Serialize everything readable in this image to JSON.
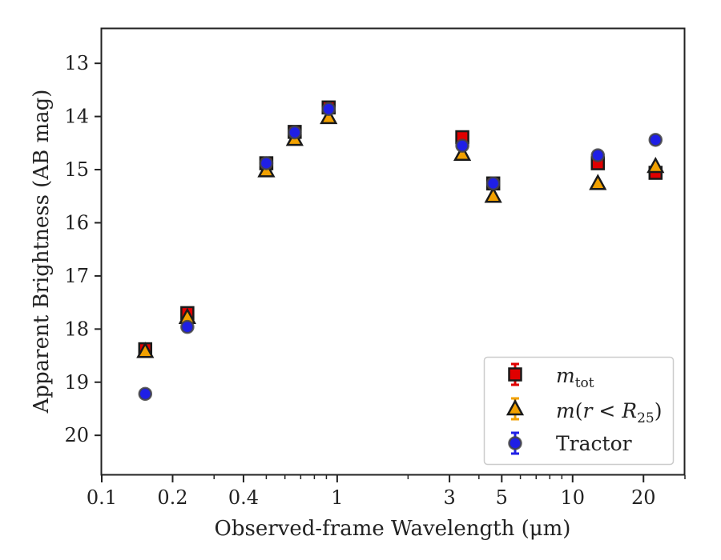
{
  "chart_data": {
    "type": "scatter",
    "xlabel": "Observed-frame Wavelength (μm)",
    "ylabel": "Apparent Brightness (AB mag)",
    "xscale": "log",
    "xlim": [
      0.1,
      30
    ],
    "ylim": [
      20.75,
      12.35
    ],
    "y_inverted": true,
    "x_ticks": [
      0.1,
      0.2,
      0.4,
      1,
      3,
      5,
      10,
      20
    ],
    "x_tick_labels": [
      "0.1",
      "0.2",
      "0.4",
      "1",
      "3",
      "5",
      "10",
      "20"
    ],
    "y_ticks": [
      13,
      14,
      15,
      16,
      17,
      18,
      19,
      20
    ],
    "y_tick_labels": [
      "13",
      "14",
      "15",
      "16",
      "17",
      "18",
      "19",
      "20"
    ],
    "grid": false,
    "legend_position": "lower-right",
    "series": [
      {
        "name": "m_tot",
        "marker": "square",
        "color": "#e00000",
        "points": [
          {
            "x": 0.153,
            "y": 18.38
          },
          {
            "x": 0.231,
            "y": 17.7
          },
          {
            "x": 0.5,
            "y": 14.88
          },
          {
            "x": 0.66,
            "y": 14.29
          },
          {
            "x": 0.92,
            "y": 13.83
          },
          {
            "x": 3.4,
            "y": 14.39
          },
          {
            "x": 4.6,
            "y": 15.26
          },
          {
            "x": 12.8,
            "y": 14.88
          },
          {
            "x": 22.5,
            "y": 15.06
          }
        ]
      },
      {
        "name": "m(r<R25)",
        "marker": "triangle",
        "color": "#f2a100",
        "points": [
          {
            "x": 0.153,
            "y": 18.42
          },
          {
            "x": 0.231,
            "y": 17.78
          },
          {
            "x": 0.5,
            "y": 15.02
          },
          {
            "x": 0.66,
            "y": 14.43
          },
          {
            "x": 0.92,
            "y": 14.02
          },
          {
            "x": 3.4,
            "y": 14.71
          },
          {
            "x": 4.6,
            "y": 15.5
          },
          {
            "x": 12.8,
            "y": 15.26
          },
          {
            "x": 22.5,
            "y": 14.94
          }
        ]
      },
      {
        "name": "Tractor",
        "marker": "circle",
        "color": "#1f1fe6",
        "points": [
          {
            "x": 0.153,
            "y": 19.22
          },
          {
            "x": 0.231,
            "y": 17.96
          },
          {
            "x": 0.5,
            "y": 14.88
          },
          {
            "x": 0.66,
            "y": 14.3
          },
          {
            "x": 0.92,
            "y": 13.86
          },
          {
            "x": 3.4,
            "y": 14.55
          },
          {
            "x": 4.6,
            "y": 15.26
          },
          {
            "x": 12.8,
            "y": 14.73
          },
          {
            "x": 22.5,
            "y": 14.44
          }
        ]
      }
    ]
  }
}
